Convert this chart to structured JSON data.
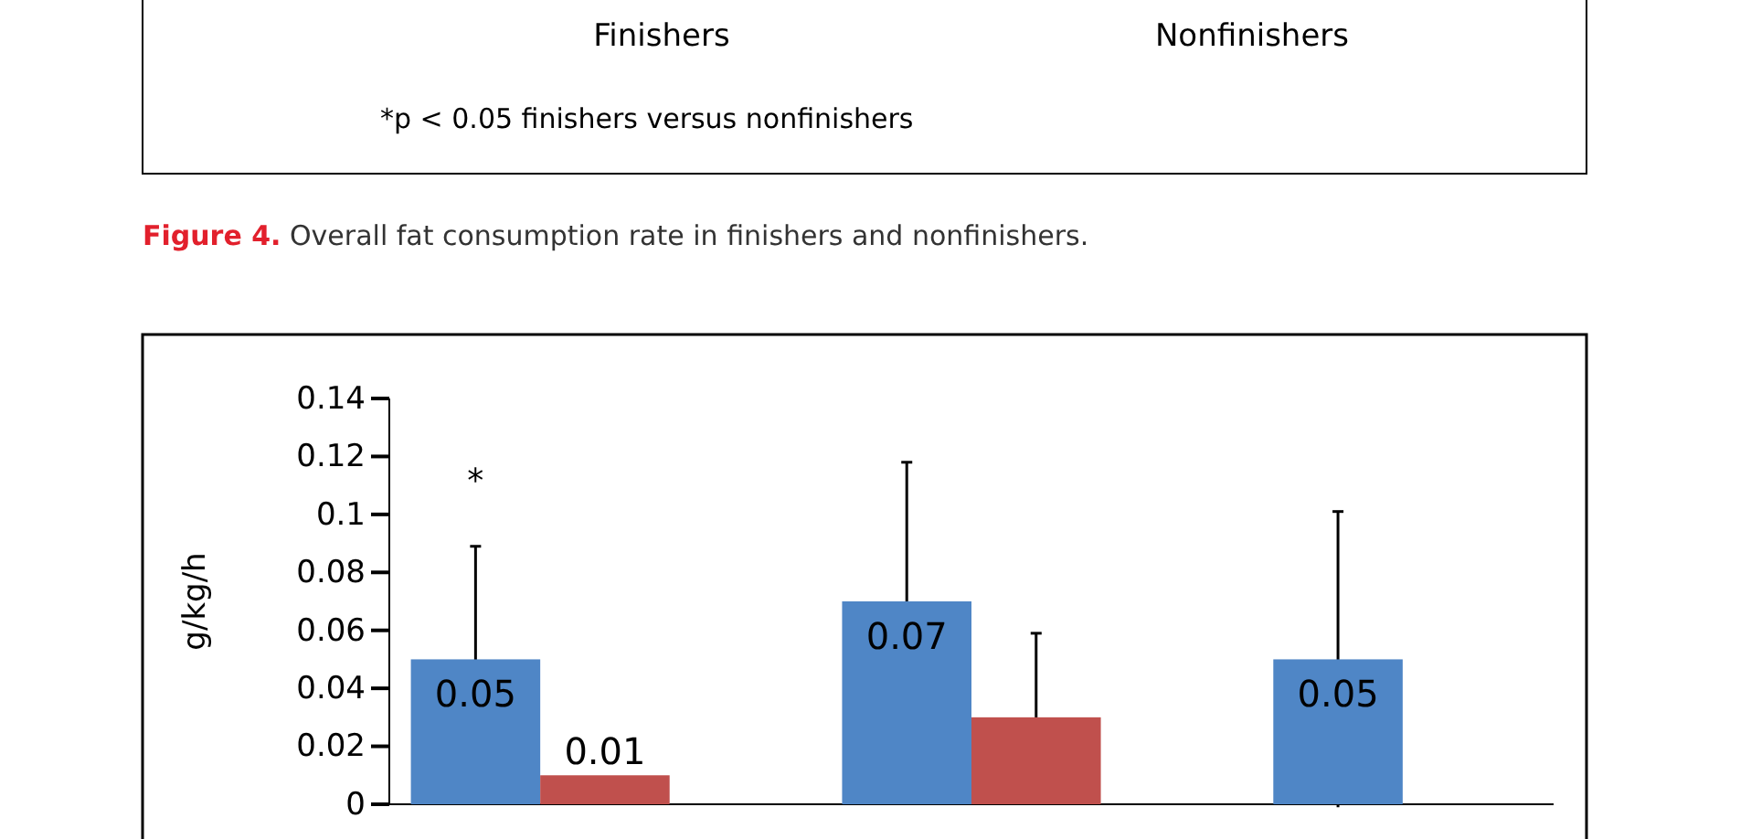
{
  "chart_data": [
    {
      "type": "other",
      "categories": [
        "Finishers",
        "Nonfinishers"
      ],
      "annotations": [
        "*p < 0.05 finishers versus nonfinishers",
        "Figure 4. Overall fat consumption rate in finishers and nonfinishers."
      ]
    },
    {
      "type": "bar",
      "ylabel": "g/kg/h",
      "categories": [
        null,
        null,
        null
      ],
      "ylim": [
        0,
        0.14
      ],
      "yticks": [
        0,
        0.02,
        0.04,
        0.06,
        0.08,
        0.1,
        0.12,
        0.14
      ],
      "tick_labels": "y",
      "annotations": [
        "*"
      ],
      "series": [
        {
          "color": "#4f86c6",
          "values": [
            0.05,
            0.07,
            0.05
          ],
          "value_labels": [
            "0.05",
            "0.07",
            "0.05"
          ],
          "errors": [
            0.039,
            0.048,
            0.051
          ]
        },
        {
          "color": "#c0504d",
          "values": [
            0.01,
            0.03,
            null
          ],
          "value_labels": [
            "0.01",
            null,
            null
          ],
          "errors": [
            null,
            0.029,
            null
          ]
        }
      ]
    }
  ]
}
